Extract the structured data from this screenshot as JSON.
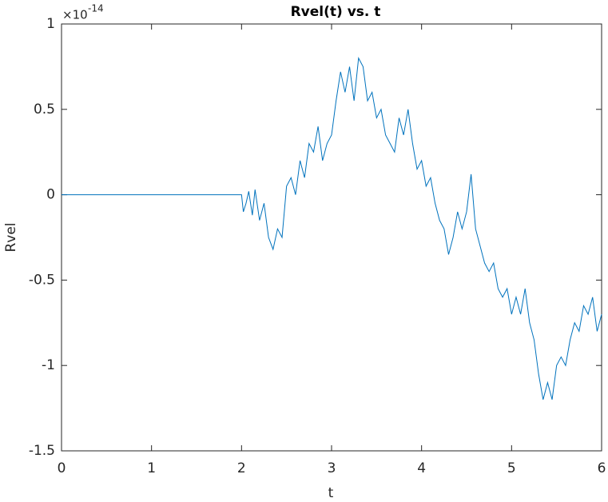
{
  "chart_data": {
    "type": "line",
    "title": "Rvel(t) vs. t",
    "x_label": "t",
    "y_label": "Rvel",
    "y_multiplier": "×10",
    "y_multiplier_exponent": "-14",
    "xlim": [
      0,
      6
    ],
    "ylim": [
      -1.5,
      1
    ],
    "xticks": [
      0,
      1,
      2,
      3,
      4,
      5,
      6
    ],
    "yticks": [
      -1.5,
      -1,
      -0.5,
      0,
      0.5,
      1
    ],
    "x": [
      0,
      2,
      2.02,
      2.05,
      2.08,
      2.12,
      2.15,
      2.2,
      2.25,
      2.3,
      2.35,
      2.4,
      2.45,
      2.5,
      2.55,
      2.6,
      2.65,
      2.7,
      2.75,
      2.8,
      2.85,
      2.9,
      2.95,
      3.0,
      3.05,
      3.1,
      3.15,
      3.2,
      3.25,
      3.3,
      3.35,
      3.4,
      3.45,
      3.5,
      3.55,
      3.6,
      3.65,
      3.7,
      3.75,
      3.8,
      3.85,
      3.9,
      3.95,
      4.0,
      4.05,
      4.1,
      4.15,
      4.2,
      4.25,
      4.3,
      4.35,
      4.4,
      4.45,
      4.5,
      4.55,
      4.6,
      4.65,
      4.7,
      4.75,
      4.8,
      4.85,
      4.9,
      4.95,
      5.0,
      5.05,
      5.1,
      5.15,
      5.2,
      5.25,
      5.3,
      5.35,
      5.4,
      5.45,
      5.5,
      5.55,
      5.6,
      5.65,
      5.7,
      5.75,
      5.8,
      5.85,
      5.9,
      5.95,
      6.0
    ],
    "series": [
      {
        "color": "#0072bd",
        "values": [
          0,
          0,
          -0.1,
          -0.05,
          0.02,
          -0.12,
          0.03,
          -0.15,
          -0.05,
          -0.25,
          -0.32,
          -0.2,
          -0.25,
          0.05,
          0.1,
          0.0,
          0.2,
          0.1,
          0.3,
          0.25,
          0.4,
          0.2,
          0.3,
          0.35,
          0.55,
          0.72,
          0.6,
          0.75,
          0.55,
          0.8,
          0.75,
          0.55,
          0.6,
          0.45,
          0.5,
          0.35,
          0.3,
          0.25,
          0.45,
          0.35,
          0.5,
          0.3,
          0.15,
          0.2,
          0.05,
          0.1,
          -0.05,
          -0.15,
          -0.2,
          -0.35,
          -0.25,
          -0.1,
          -0.2,
          -0.1,
          0.12,
          -0.2,
          -0.3,
          -0.4,
          -0.45,
          -0.4,
          -0.55,
          -0.6,
          -0.55,
          -0.7,
          -0.6,
          -0.7,
          -0.55,
          -0.75,
          -0.85,
          -1.05,
          -1.2,
          -1.1,
          -1.2,
          -1.0,
          -0.95,
          -1.0,
          -0.85,
          -0.75,
          -0.8,
          -0.65,
          -0.7,
          -0.6,
          -0.8,
          -0.7
        ]
      }
    ]
  }
}
